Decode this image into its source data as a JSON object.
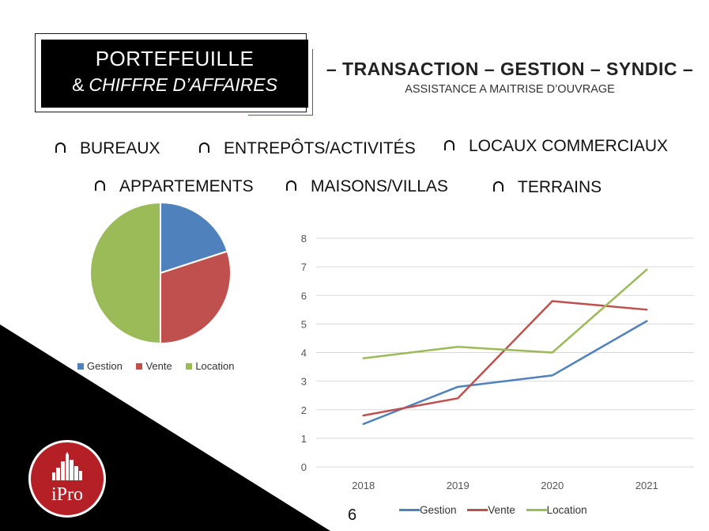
{
  "header": {
    "title_line1": "PORTEFEUILLE",
    "title_amp": "&",
    "title_line2": "CHIFFRE D’AFFAIRES",
    "services": "– TRANSACTION – GESTION – SYNDIC –",
    "services_sub": "ASSISTANCE A MAITRISE D’OUVRAGE"
  },
  "categories": {
    "row1": [
      "BUREAUX",
      "ENTREPÔTS/ACTIVITÉS",
      "LOCAUX COMMERCIAUX"
    ],
    "row2": [
      "APPARTEMENTS",
      "MAISONS/VILLAS",
      "TERRAINS"
    ]
  },
  "colors": {
    "gestion": "#4f81bd",
    "vente": "#c0504d",
    "location": "#9bbb59",
    "logo": "#b52026"
  },
  "chart_data": [
    {
      "type": "pie",
      "title": "",
      "categories": [
        "Gestion",
        "Vente",
        "Location"
      ],
      "values": [
        20,
        30,
        50
      ],
      "legend": "bottom"
    },
    {
      "type": "line",
      "title": "",
      "categories": [
        "2018",
        "2019",
        "2020",
        "2021"
      ],
      "series": [
        {
          "name": "Gestion",
          "values": [
            1.5,
            2.8,
            3.2,
            5.1
          ]
        },
        {
          "name": "Vente",
          "values": [
            1.8,
            2.4,
            5.8,
            5.5
          ]
        },
        {
          "name": "Location",
          "values": [
            3.8,
            4.2,
            4.0,
            6.9
          ]
        }
      ],
      "ylim": [
        0,
        8
      ],
      "yticks": [
        "0",
        "1",
        "2",
        "3",
        "4",
        "5",
        "6",
        "7",
        "8"
      ],
      "grid": true,
      "legend": "bottom"
    }
  ],
  "footer": {
    "page_number": "6",
    "logo_text": "iPro"
  }
}
